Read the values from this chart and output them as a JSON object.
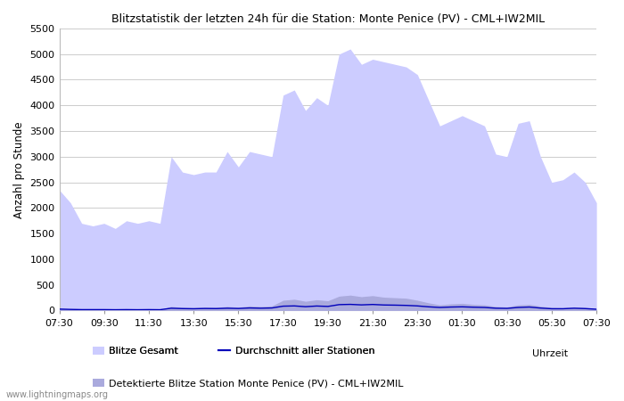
{
  "title": "Blitzstatistik der letzten 24h für die Station: Monte Penice (PV) - CML+IW2MIL",
  "ylabel": "Anzahl pro Stunde",
  "xlabel": "Uhrzeit",
  "ylim": [
    0,
    5500
  ],
  "yticks": [
    0,
    500,
    1000,
    1500,
    2000,
    2500,
    3000,
    3500,
    4000,
    4500,
    5000,
    5500
  ],
  "xtick_labels": [
    "07:30",
    "09:30",
    "11:30",
    "13:30",
    "15:30",
    "17:30",
    "19:30",
    "21:30",
    "23:30",
    "01:30",
    "03:30",
    "05:30",
    "07:30"
  ],
  "watermark": "www.lightningmaps.org",
  "legend1_label": "Blitze Gesamt",
  "legend2_label": "Durchschnitt aller Stationen",
  "legend3_label": "Detektierte Blitze Station Monte Penice (PV) - CML+IW2MIL",
  "bg_color": "#ffffff",
  "grid_color": "#cccccc",
  "fill_color_total": "#ccccff",
  "fill_color_station": "#aaaadd",
  "line_color_avg": "#0000bb",
  "total_values": [
    2350,
    2100,
    1700,
    1650,
    1700,
    1600,
    1750,
    1700,
    1750,
    1700,
    3000,
    2700,
    2650,
    2700,
    2700,
    3100,
    2800,
    3100,
    3050,
    3000,
    4200,
    4300,
    3900,
    4150,
    4000,
    5000,
    5100,
    4800,
    4900,
    4850,
    4800,
    4750,
    4600,
    4100,
    3600,
    3700,
    3800,
    3700,
    3600,
    3050,
    3000,
    3650,
    3700,
    3000,
    2500,
    2550,
    2700,
    2500,
    2100
  ],
  "station_values": [
    50,
    30,
    20,
    20,
    20,
    18,
    20,
    18,
    20,
    18,
    80,
    60,
    55,
    65,
    60,
    80,
    65,
    90,
    80,
    90,
    200,
    220,
    180,
    210,
    190,
    280,
    300,
    270,
    290,
    260,
    250,
    240,
    200,
    150,
    110,
    130,
    140,
    120,
    110,
    80,
    70,
    110,
    120,
    85,
    60,
    55,
    70,
    58,
    40
  ],
  "avg_values": [
    28,
    22,
    18,
    18,
    18,
    16,
    18,
    16,
    18,
    16,
    45,
    38,
    35,
    40,
    38,
    45,
    40,
    50,
    45,
    50,
    85,
    90,
    75,
    88,
    80,
    115,
    120,
    110,
    118,
    108,
    105,
    100,
    90,
    72,
    60,
    68,
    72,
    65,
    60,
    45,
    42,
    60,
    68,
    48,
    35,
    35,
    45,
    38,
    25
  ]
}
